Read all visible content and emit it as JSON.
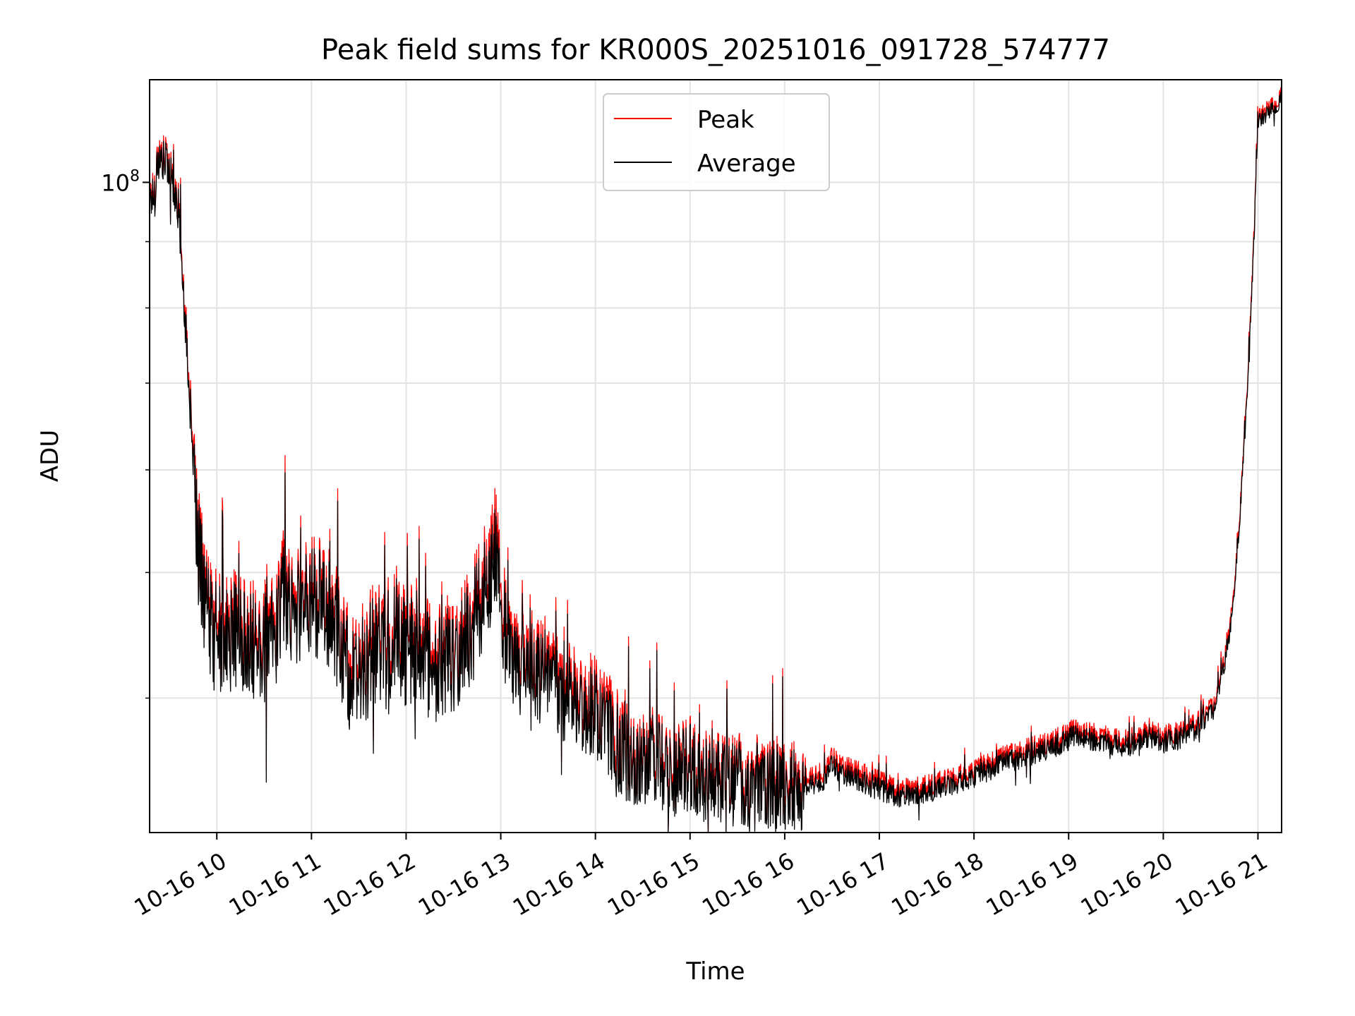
{
  "chart_data": {
    "type": "line",
    "title": "Peak field sums for KR000S_20251016_091728_574777",
    "xlabel": "Time",
    "ylabel": "ADU",
    "y_scale": "log",
    "ylim": [
      31500000.0,
      120000000.0
    ],
    "xlim_hours": [
      9.29,
      21.25
    ],
    "x_ticks": [
      {
        "hour": 10,
        "label": "10-16 10"
      },
      {
        "hour": 11,
        "label": "10-16 11"
      },
      {
        "hour": 12,
        "label": "10-16 12"
      },
      {
        "hour": 13,
        "label": "10-16 13"
      },
      {
        "hour": 14,
        "label": "10-16 14"
      },
      {
        "hour": 15,
        "label": "10-16 15"
      },
      {
        "hour": 16,
        "label": "10-16 16"
      },
      {
        "hour": 17,
        "label": "10-16 17"
      },
      {
        "hour": 18,
        "label": "10-16 18"
      },
      {
        "hour": 19,
        "label": "10-16 19"
      },
      {
        "hour": 20,
        "label": "10-16 20"
      },
      {
        "hour": 21,
        "label": "10-16 21"
      }
    ],
    "y_major_ticks": [
      {
        "value": 100000000.0,
        "base": "10",
        "exp": "8"
      }
    ],
    "y_minor_ticks": [
      40000000.0,
      50000000.0,
      60000000.0,
      70000000.0,
      80000000.0,
      90000000.0
    ],
    "grid": true,
    "legend_position": "top-center",
    "series": [
      {
        "name": "Peak",
        "color": "#ff0000",
        "x_hours": [
          9.29,
          9.35,
          9.37,
          9.5,
          9.53,
          9.6,
          9.65,
          9.7,
          9.75,
          9.8,
          9.85,
          9.9,
          9.95,
          10.0,
          10.1,
          10.2,
          10.4,
          10.6,
          10.72,
          10.8,
          11.0,
          11.2,
          11.3,
          11.45,
          11.55,
          11.7,
          11.8,
          11.9,
          12.0,
          12.1,
          12.3,
          12.5,
          12.7,
          12.85,
          12.95,
          13.05,
          13.2,
          13.4,
          13.6,
          13.8,
          14.0,
          14.2,
          14.4,
          14.6,
          14.8,
          15.0,
          15.2,
          15.4,
          15.6,
          15.8,
          16.0,
          16.2,
          16.4,
          16.5,
          16.6,
          16.8,
          17.0,
          17.2,
          17.5,
          17.8,
          18.0,
          18.3,
          18.6,
          18.9,
          19.05,
          19.2,
          19.5,
          19.7,
          19.85,
          20.0,
          20.15,
          20.3,
          20.45,
          20.55,
          20.65,
          20.72,
          20.8,
          20.88,
          20.95,
          21.0,
          21.25
        ],
        "y": [
          98000000.0,
          99000000.0,
          105000000.0,
          104000000.0,
          101000000.0,
          96000000.0,
          83000000.0,
          72000000.0,
          60000000.0,
          53000000.0,
          50000000.0,
          47500000.0,
          45500000.0,
          46000000.0,
          45000000.0,
          46000000.0,
          44500000.0,
          45000000.0,
          50000000.0,
          47000000.0,
          49000000.0,
          47000000.0,
          45500000.0,
          41500000.0,
          43000000.0,
          45000000.0,
          44000000.0,
          46000000.0,
          44000000.0,
          45000000.0,
          43000000.0,
          44000000.0,
          46000000.0,
          51000000.0,
          53000000.0,
          45000000.0,
          43000000.0,
          42500000.0,
          41500000.0,
          40500000.0,
          40000000.0,
          38000000.0,
          36000000.0,
          36500000.0,
          35500000.0,
          36000000.0,
          34800000.0,
          35000000.0,
          34500000.0,
          34700000.0,
          34500000.0,
          34700000.0,
          35000000.0,
          36000000.0,
          35500000.0,
          35000000.0,
          34500000.0,
          34000000.0,
          34200000.0,
          34800000.0,
          35200000.0,
          36000000.0,
          36600000.0,
          37200000.0,
          37800000.0,
          37600000.0,
          37200000.0,
          37200000.0,
          37800000.0,
          37400000.0,
          37600000.0,
          38000000.0,
          38800000.0,
          40000000.0,
          43000000.0,
          46500000.0,
          54000000.0,
          68000000.0,
          88000000.0,
          112000000.0,
          117000000.0
        ]
      },
      {
        "name": "Average",
        "color": "#000000",
        "x_hours": [
          9.29,
          9.35,
          9.37,
          9.5,
          9.53,
          9.6,
          9.65,
          9.7,
          9.75,
          9.8,
          9.85,
          9.9,
          9.95,
          10.0,
          10.1,
          10.2,
          10.4,
          10.6,
          10.72,
          10.8,
          11.0,
          11.2,
          11.3,
          11.45,
          11.55,
          11.7,
          11.8,
          11.9,
          12.0,
          12.1,
          12.3,
          12.5,
          12.7,
          12.85,
          12.95,
          13.05,
          13.2,
          13.4,
          13.6,
          13.8,
          14.0,
          14.2,
          14.4,
          14.6,
          14.8,
          15.0,
          15.2,
          15.4,
          15.6,
          15.8,
          16.0,
          16.2,
          16.4,
          16.5,
          16.6,
          16.8,
          17.0,
          17.2,
          17.5,
          17.8,
          18.0,
          18.3,
          18.6,
          18.9,
          19.05,
          19.2,
          19.5,
          19.7,
          19.85,
          20.0,
          20.15,
          20.3,
          20.45,
          20.55,
          20.65,
          20.72,
          20.8,
          20.88,
          20.95,
          21.0,
          21.25
        ],
        "y": [
          97000000.0,
          98000000.0,
          104000000.0,
          103000000.0,
          100000000.0,
          95000000.0,
          82000000.0,
          71000000.0,
          59000000.0,
          52000000.0,
          49000000.0,
          46500000.0,
          44500000.0,
          45000000.0,
          44000000.0,
          45000000.0,
          43500000.0,
          44000000.0,
          48500000.0,
          46000000.0,
          48000000.0,
          46000000.0,
          44500000.0,
          40500000.0,
          42000000.0,
          44000000.0,
          43000000.0,
          45000000.0,
          43000000.0,
          44000000.0,
          42000000.0,
          43000000.0,
          45000000.0,
          49500000.0,
          51000000.0,
          44000000.0,
          42000000.0,
          41500000.0,
          40500000.0,
          39500000.0,
          39000000.0,
          37000000.0,
          35500000.0,
          36000000.0,
          35000000.0,
          35500000.0,
          34300000.0,
          34500000.0,
          34000000.0,
          34200000.0,
          34000000.0,
          34200000.0,
          34500000.0,
          35500000.0,
          35000000.0,
          34500000.0,
          34000000.0,
          33600000.0,
          33800000.0,
          34400000.0,
          34800000.0,
          35600000.0,
          36200000.0,
          36800000.0,
          37400000.0,
          37200000.0,
          36800000.0,
          36800000.0,
          37400000.0,
          37000000.0,
          37200000.0,
          37600000.0,
          38400000.0,
          39600000.0,
          42500000.0,
          46000000.0,
          53500000.0,
          67500000.0,
          87000000.0,
          111000000.0,
          116000000.0
        ]
      }
    ]
  }
}
